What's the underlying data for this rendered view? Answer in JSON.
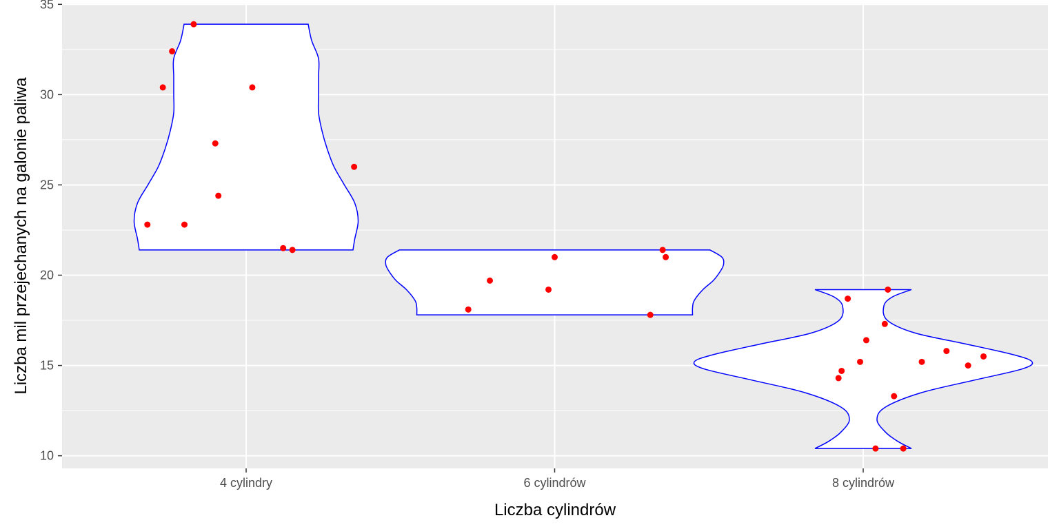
{
  "chart_data": {
    "type": "violin",
    "title": "",
    "xlabel": "Liczba cylindrów",
    "ylabel": "Liczba mil przejechanych na galonie paliwa",
    "categories": [
      "4 cylindry",
      "6 cylindrów",
      "8 cylindrów"
    ],
    "ylim": [
      9.3,
      35.05
    ],
    "yticks": [
      10,
      15,
      20,
      25,
      30,
      35
    ],
    "yticks_minor": [
      12.5,
      17.5,
      22.5,
      27.5,
      32.5
    ],
    "panel_background": "#ebebeb",
    "grid": true,
    "violin_fill": "#ffffff",
    "violin_outline": "#0000ff",
    "point_color": "#ff0000",
    "violins": [
      {
        "category": "4 cylindry",
        "profile": [
          [
            21.4,
            0.62
          ],
          [
            22.0,
            0.63
          ],
          [
            23.0,
            0.65
          ],
          [
            24.0,
            0.63
          ],
          [
            25.0,
            0.57
          ],
          [
            26.0,
            0.51
          ],
          [
            27.0,
            0.47
          ],
          [
            28.0,
            0.44
          ],
          [
            29.0,
            0.42
          ],
          [
            30.0,
            0.42
          ],
          [
            31.0,
            0.42
          ],
          [
            32.0,
            0.42
          ],
          [
            33.0,
            0.38
          ],
          [
            33.9,
            0.36
          ]
        ]
      },
      {
        "category": "6 cylindrów",
        "profile": [
          [
            17.8,
            0.8
          ],
          [
            18.2,
            0.8
          ],
          [
            18.6,
            0.81
          ],
          [
            19.2,
            0.86
          ],
          [
            19.7,
            0.92
          ],
          [
            20.2,
            0.96
          ],
          [
            20.6,
            0.98
          ],
          [
            21.0,
            0.97
          ],
          [
            21.4,
            0.9
          ]
        ]
      },
      {
        "category": "8 cylindrów",
        "profile": [
          [
            10.4,
            0.28
          ],
          [
            10.8,
            0.2
          ],
          [
            11.3,
            0.13
          ],
          [
            12.0,
            0.08
          ],
          [
            12.7,
            0.13
          ],
          [
            13.5,
            0.34
          ],
          [
            14.2,
            0.65
          ],
          [
            14.8,
            0.92
          ],
          [
            15.2,
            0.98
          ],
          [
            15.6,
            0.87
          ],
          [
            16.2,
            0.59
          ],
          [
            16.8,
            0.3
          ],
          [
            17.5,
            0.14
          ],
          [
            18.3,
            0.12
          ],
          [
            18.8,
            0.17
          ],
          [
            19.2,
            0.28
          ]
        ]
      }
    ],
    "points": [
      {
        "category": "4 cylindry",
        "jitter": -0.32,
        "y": 22.8
      },
      {
        "category": "4 cylindry",
        "jitter": -0.27,
        "y": 30.4
      },
      {
        "category": "4 cylindry",
        "jitter": -0.24,
        "y": 32.4
      },
      {
        "category": "4 cylindry",
        "jitter": -0.2,
        "y": 22.8
      },
      {
        "category": "4 cylindry",
        "jitter": -0.17,
        "y": 33.9
      },
      {
        "category": "4 cylindry",
        "jitter": -0.1,
        "y": 27.3
      },
      {
        "category": "4 cylindry",
        "jitter": -0.09,
        "y": 24.4
      },
      {
        "category": "4 cylindry",
        "jitter": 0.02,
        "y": 30.4
      },
      {
        "category": "4 cylindry",
        "jitter": 0.12,
        "y": 21.5
      },
      {
        "category": "4 cylindry",
        "jitter": 0.15,
        "y": 21.4
      },
      {
        "category": "4 cylindry",
        "jitter": 0.35,
        "y": 26.0
      },
      {
        "category": "6 cylindrów",
        "jitter": -0.28,
        "y": 18.1
      },
      {
        "category": "6 cylindrów",
        "jitter": -0.21,
        "y": 19.7
      },
      {
        "category": "6 cylindrów",
        "jitter": -0.02,
        "y": 19.2
      },
      {
        "category": "6 cylindrów",
        "jitter": 0.0,
        "y": 21.0
      },
      {
        "category": "6 cylindrów",
        "jitter": 0.31,
        "y": 17.8
      },
      {
        "category": "6 cylindrów",
        "jitter": 0.35,
        "y": 21.4
      },
      {
        "category": "6 cylindrów",
        "jitter": 0.36,
        "y": 21.0
      },
      {
        "category": "8 cylindrów",
        "jitter": -0.08,
        "y": 14.3
      },
      {
        "category": "8 cylindrów",
        "jitter": -0.07,
        "y": 14.7
      },
      {
        "category": "8 cylindrów",
        "jitter": -0.05,
        "y": 18.7
      },
      {
        "category": "8 cylindrów",
        "jitter": -0.01,
        "y": 15.2
      },
      {
        "category": "8 cylindrów",
        "jitter": 0.01,
        "y": 16.4
      },
      {
        "category": "8 cylindrów",
        "jitter": 0.04,
        "y": 10.4
      },
      {
        "category": "8 cylindrów",
        "jitter": 0.07,
        "y": 17.3
      },
      {
        "category": "8 cylindrów",
        "jitter": 0.08,
        "y": 19.2
      },
      {
        "category": "8 cylindrów",
        "jitter": 0.1,
        "y": 13.3
      },
      {
        "category": "8 cylindrów",
        "jitter": 0.13,
        "y": 10.4
      },
      {
        "category": "8 cylindrów",
        "jitter": 0.19,
        "y": 15.2
      },
      {
        "category": "8 cylindrów",
        "jitter": 0.27,
        "y": 15.8
      },
      {
        "category": "8 cylindrów",
        "jitter": 0.34,
        "y": 15.0
      },
      {
        "category": "8 cylindrów",
        "jitter": 0.39,
        "y": 15.5
      }
    ]
  }
}
